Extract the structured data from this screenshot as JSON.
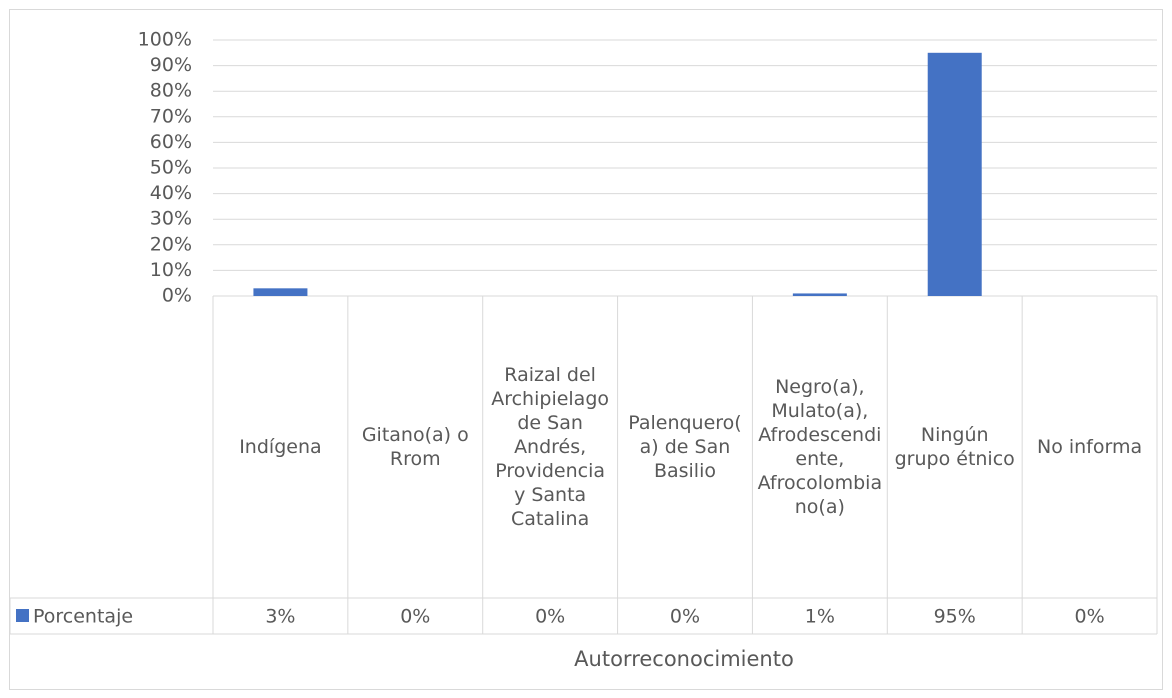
{
  "chart_data": {
    "type": "bar",
    "categories": [
      "Indígena",
      "Gitano(a) o Rrom",
      "Raizal del Archipielago de San Andrés, Providencia y Santa Catalina",
      "Palenquero(a) de San Basilio",
      "Negro(a), Mulato(a), Afrodescendiente, Afrocolombiano(a)",
      "Ningún grupo étnico",
      "No informa"
    ],
    "series": [
      {
        "name": "Porcentaje",
        "color": "#4472c4",
        "values": [
          3,
          0,
          0,
          0,
          1,
          95,
          0
        ],
        "value_labels": [
          "3%",
          "0%",
          "0%",
          "0%",
          "1%",
          "95%",
          "0%"
        ]
      }
    ],
    "x_label": "Autorreconocimiento",
    "ylim": [
      0,
      100
    ],
    "yticks": [
      {
        "value": 0,
        "label": "0%"
      },
      {
        "value": 10,
        "label": "10%"
      },
      {
        "value": 20,
        "label": "20%"
      },
      {
        "value": 30,
        "label": "30%"
      },
      {
        "value": 40,
        "label": "40%"
      },
      {
        "value": 50,
        "label": "50%"
      },
      {
        "value": 60,
        "label": "60%"
      },
      {
        "value": 70,
        "label": "70%"
      },
      {
        "value": 80,
        "label": "80%"
      },
      {
        "value": 90,
        "label": "90%"
      },
      {
        "value": 100,
        "label": "100%"
      }
    ],
    "grid": true
  }
}
